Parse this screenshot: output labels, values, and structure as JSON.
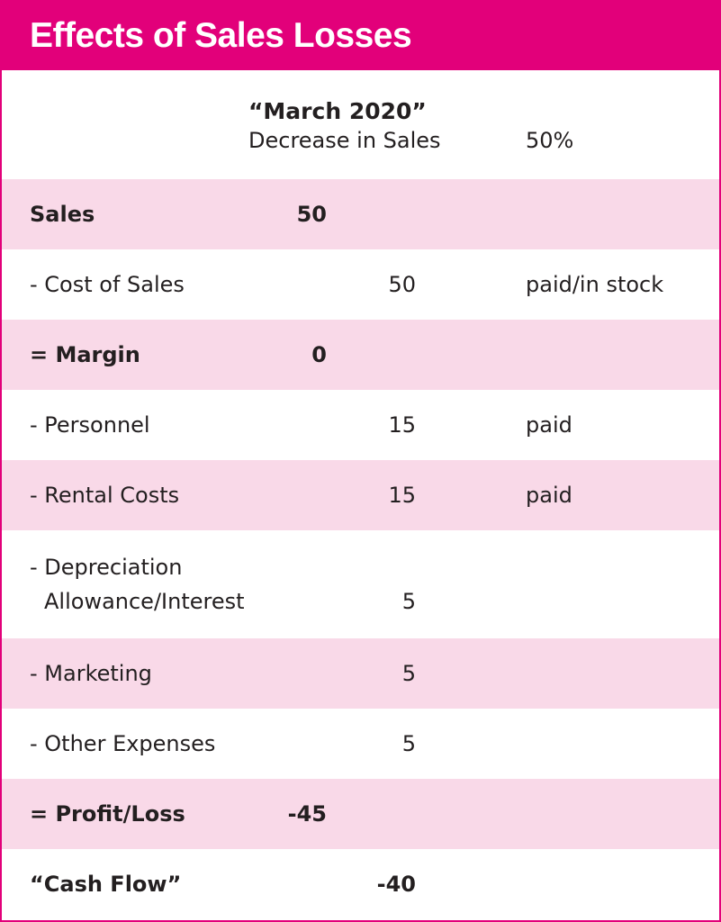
{
  "title": "Effects of Sales Losses",
  "header": {
    "period": "“March 2020”",
    "scenario_label": "Decrease in Sales",
    "scenario_value": "50%"
  },
  "rows": [
    {
      "label": "Sales",
      "value": "50",
      "column": 1,
      "note": "",
      "bold": true,
      "shaded": true
    },
    {
      "label": "- Cost of Sales",
      "value": "50",
      "column": 2,
      "note": "paid/in stock",
      "bold": false,
      "shaded": false
    },
    {
      "label": "= Margin",
      "value": "0",
      "column": 1,
      "note": "",
      "bold": true,
      "shaded": true
    },
    {
      "label": "- Personnel",
      "value": "15",
      "column": 2,
      "note": "paid",
      "bold": false,
      "shaded": false
    },
    {
      "label": "- Rental Costs",
      "value": "15",
      "column": 2,
      "note": "paid",
      "bold": false,
      "shaded": true
    },
    {
      "label_line1": "- Depreciation",
      "label_line2": "Allowance/Interest",
      "value": "5",
      "column": 2,
      "note": "",
      "bold": false,
      "shaded": false
    },
    {
      "label": "- Marketing",
      "value": "5",
      "column": 2,
      "note": "",
      "bold": false,
      "shaded": true
    },
    {
      "label": "- Other Expenses",
      "value": "5",
      "column": 2,
      "note": "",
      "bold": false,
      "shaded": false
    },
    {
      "label": "= Profit/Loss",
      "value": "-45",
      "column": 1,
      "note": "",
      "bold": true,
      "shaded": true
    },
    {
      "label": "“Cash Flow”",
      "value": "-40",
      "column": 2,
      "note": "",
      "bold": true,
      "shaded": false
    }
  ],
  "colors": {
    "accent": "#e2007a",
    "row_shade": "#f9d9e8",
    "text": "#231f20"
  }
}
